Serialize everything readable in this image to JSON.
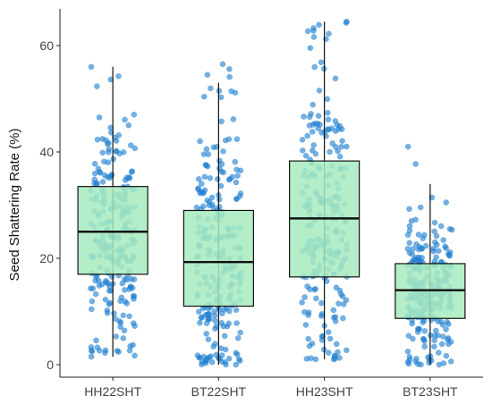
{
  "chart_data": {
    "type": "box",
    "title": "",
    "xlabel": "",
    "ylabel": "Seed Shattering Rate (%)",
    "ylim": [
      -1.5,
      66
    ],
    "yticks": [
      0,
      20,
      40,
      60
    ],
    "grid": false,
    "categories": [
      "HH22SHT",
      "BT22SHT",
      "HH23SHT",
      "BT23SHT"
    ],
    "boxes": [
      {
        "category": "HH22SHT",
        "whisker_low": 1.5,
        "q1": 17.0,
        "median": 25.0,
        "q3": 33.5,
        "whisker_high": 56.0,
        "min_point": 1.5,
        "max_point": 56.0,
        "approx_points": 230
      },
      {
        "category": "BT22SHT",
        "whisker_low": 0.0,
        "q1": 11.0,
        "median": 19.3,
        "q3": 29.0,
        "whisker_high": 53.0,
        "min_point": 0.0,
        "max_point": 56.5,
        "approx_points": 230
      },
      {
        "category": "HH23SHT",
        "whisker_low": 1.0,
        "q1": 16.5,
        "median": 27.5,
        "q3": 38.3,
        "whisker_high": 64.5,
        "min_point": 1.0,
        "max_point": 64.5,
        "approx_points": 230
      },
      {
        "category": "BT23SHT",
        "whisker_low": 0.0,
        "q1": 8.7,
        "median": 14.0,
        "q3": 19.0,
        "whisker_high": 34.0,
        "min_point": 0.0,
        "max_point": 41.0,
        "approx_points": 230
      }
    ],
    "colors": {
      "box_fill": "#a7ebbf",
      "box_stroke": "#111111",
      "points": "#1f7fd0"
    }
  }
}
